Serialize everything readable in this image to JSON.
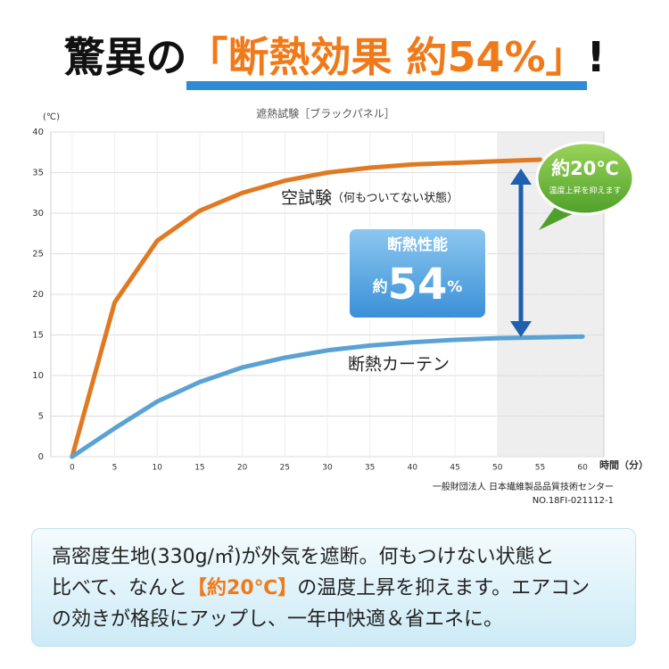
{
  "headline": {
    "prefix": "驚異の",
    "highlight": "「断熱効果 約54%」",
    "suffix": "!"
  },
  "chart_data": {
    "type": "line",
    "title": "遮熱試験［ブラックパネル］",
    "y_label": "(℃)",
    "x_label": "時間（分）",
    "x": [
      0,
      5,
      10,
      15,
      20,
      25,
      30,
      35,
      40,
      45,
      50,
      55,
      60
    ],
    "series": [
      {
        "name": "空試験",
        "note": "（何もついてない状態）",
        "color": "#e07a22",
        "values": [
          0,
          19,
          26.6,
          30.3,
          32.5,
          34,
          35,
          35.6,
          36,
          36.2,
          36.4,
          36.6,
          null
        ]
      },
      {
        "name": "断熱カーテン",
        "color": "#5aa2d4",
        "values": [
          0,
          3.5,
          6.8,
          9.2,
          11,
          12.2,
          13.1,
          13.7,
          14.1,
          14.4,
          14.6,
          14.7,
          14.8
        ]
      }
    ],
    "xlim": [
      -2.5,
      62.5
    ],
    "ylim": [
      0,
      40
    ],
    "xticks": [
      0,
      5,
      10,
      15,
      20,
      25,
      30,
      35,
      40,
      45,
      50,
      55,
      60
    ],
    "yticks": [
      0,
      5,
      10,
      15,
      20,
      25,
      30,
      35,
      40
    ],
    "grid": true,
    "shade_x": [
      50,
      62.5
    ],
    "performance_box": {
      "label": "断熱性能",
      "prefix": "約",
      "number": "54",
      "unit": "%"
    },
    "bubble": {
      "main": "約20℃",
      "sub": "温度上昇を抑えます"
    },
    "source": [
      "一般財団法人 日本繊維製品品質技術センター",
      "NO.18FI-021112-1"
    ]
  },
  "description": {
    "lines": [
      [
        "高密度生地(330g/㎡)が外気を遮断。何もつけない状態と"
      ],
      [
        "比べて、なんと",
        "【約20℃】",
        "の温度上昇を抑えます。エアコン"
      ],
      [
        "の効きが格段にアップし、一年中快適＆省エネに。"
      ]
    ]
  }
}
